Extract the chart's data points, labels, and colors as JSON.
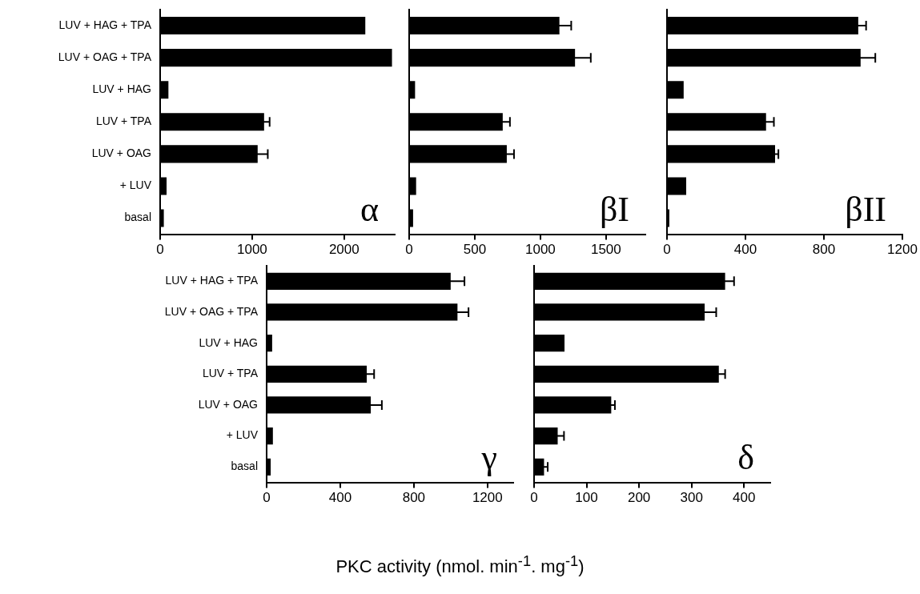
{
  "chart_data": [
    {
      "type": "bar",
      "orientation": "horizontal",
      "title": "α",
      "categories": [
        "LUV + HAG + TPA",
        "LUV + OAG + TPA",
        "LUV + HAG",
        "LUV + TPA",
        "LUV + OAG",
        "+ LUV",
        "basal"
      ],
      "values": [
        2230,
        2520,
        90,
        1130,
        1060,
        70,
        40
      ],
      "errors": [
        null,
        null,
        null,
        60,
        110,
        null,
        null
      ],
      "color": "#000000",
      "xlim": [
        0,
        2550
      ],
      "xticks": [
        0,
        1000,
        2000
      ]
    },
    {
      "type": "bar",
      "orientation": "horizontal",
      "title": "βI",
      "categories": [
        null,
        null,
        null,
        null,
        null,
        null,
        null
      ],
      "values": [
        1145,
        1264,
        45,
        713,
        744,
        53,
        30
      ],
      "errors": [
        90,
        120,
        null,
        55,
        55,
        null,
        null
      ],
      "color": "#000000",
      "xlim": [
        0,
        1800
      ],
      "xticks": [
        0,
        500,
        1000,
        1500
      ]
    },
    {
      "type": "bar",
      "orientation": "horizontal",
      "title": "βII",
      "categories": [
        null,
        null,
        null,
        null,
        null,
        null,
        null
      ],
      "values": [
        975,
        987,
        85,
        505,
        551,
        98,
        12
      ],
      "errors": [
        40,
        75,
        null,
        40,
        17,
        null,
        null
      ],
      "color": "#000000",
      "xlim": [
        0,
        1200
      ],
      "xticks": [
        0,
        400,
        800,
        1200
      ]
    },
    {
      "type": "bar",
      "orientation": "horizontal",
      "title": "γ",
      "xlabel": "PKC activity (nmol. min$^{-1}$. mg$^{-1}$)",
      "categories": [
        "LUV + HAG + TPA",
        "LUV + OAG + TPA",
        "LUV + HAG",
        "LUV + TPA",
        "LUV + OAG",
        "+ LUV",
        "basal"
      ],
      "values": [
        1000,
        1037,
        30,
        544,
        566,
        34,
        22
      ],
      "errors": [
        75,
        60,
        null,
        40,
        60,
        null,
        null
      ],
      "color": "#000000",
      "xlim": [
        0,
        1340
      ],
      "xticks": [
        0,
        400,
        800,
        1200
      ]
    },
    {
      "type": "bar",
      "orientation": "horizontal",
      "title": "δ",
      "categories": [
        null,
        null,
        null,
        null,
        null,
        null,
        null
      ],
      "values": [
        364,
        325,
        58,
        352,
        147,
        45,
        19
      ],
      "errors": [
        17,
        22,
        null,
        12,
        7,
        12,
        7
      ],
      "color": "#000000",
      "xlim": [
        0,
        450
      ],
      "xticks": [
        0,
        100,
        200,
        300,
        400
      ]
    }
  ]
}
